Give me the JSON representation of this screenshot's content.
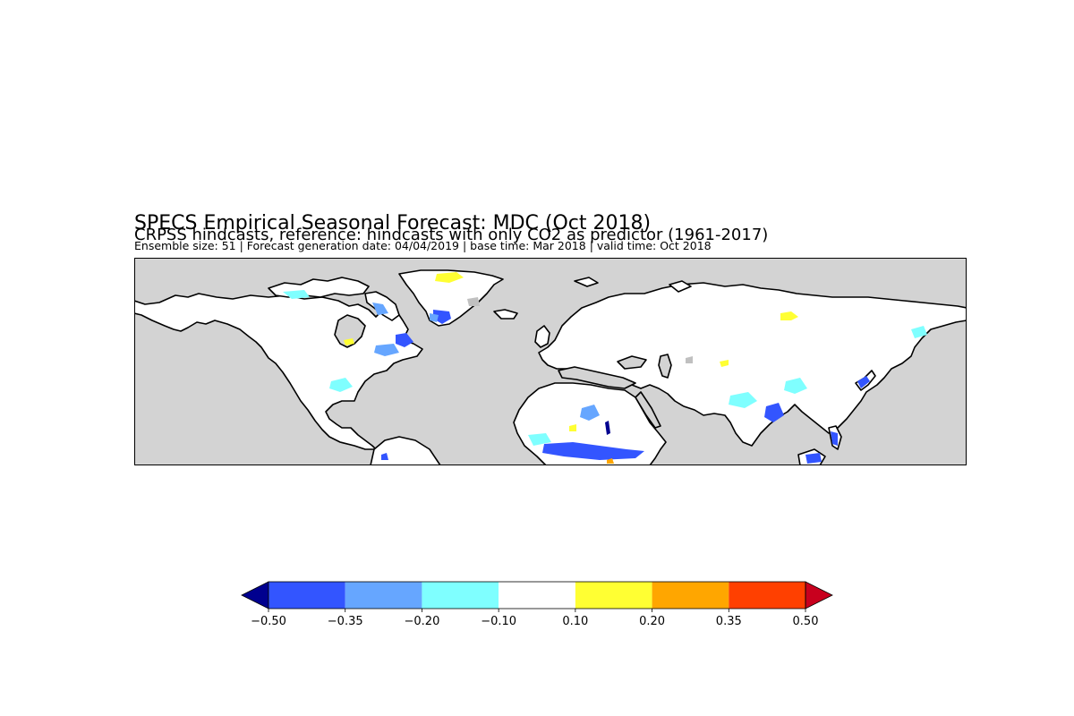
{
  "title": "SPECS Empirical Seasonal Forecast: MDC (Oct 2018)",
  "subtitle": "CRPSS hindcasts, reference: hindcasts with only CO2 as predictor (1961-2017)",
  "info": "Ensemble size: 51 | Forecast generation date: 04/04/2019 | base time: Mar 2018 | valid time: Oct 2018",
  "map": {
    "background_color": "#d3d3d3",
    "land_color": "#ffffff",
    "coast_color": "#000000",
    "masked_color": "#c0c0c0"
  },
  "colorbar": {
    "ticks": [
      "−0.50",
      "−0.35",
      "−0.20",
      "−0.10",
      "0.10",
      "0.20",
      "0.35",
      "0.50"
    ],
    "under_color": "#00008f",
    "over_color": "#c8001e",
    "bins": [
      {
        "from": -0.5,
        "to": -0.35,
        "color": "#3355ff"
      },
      {
        "from": -0.35,
        "to": -0.2,
        "color": "#66a6ff"
      },
      {
        "from": -0.2,
        "to": -0.1,
        "color": "#7fffff"
      },
      {
        "from": -0.1,
        "to": 0.1,
        "color": "#ffffff"
      },
      {
        "from": 0.1,
        "to": 0.2,
        "color": "#ffff33"
      },
      {
        "from": 0.2,
        "to": 0.35,
        "color": "#ffa600"
      },
      {
        "from": 0.35,
        "to": 0.5,
        "color": "#ff4000"
      }
    ]
  }
}
